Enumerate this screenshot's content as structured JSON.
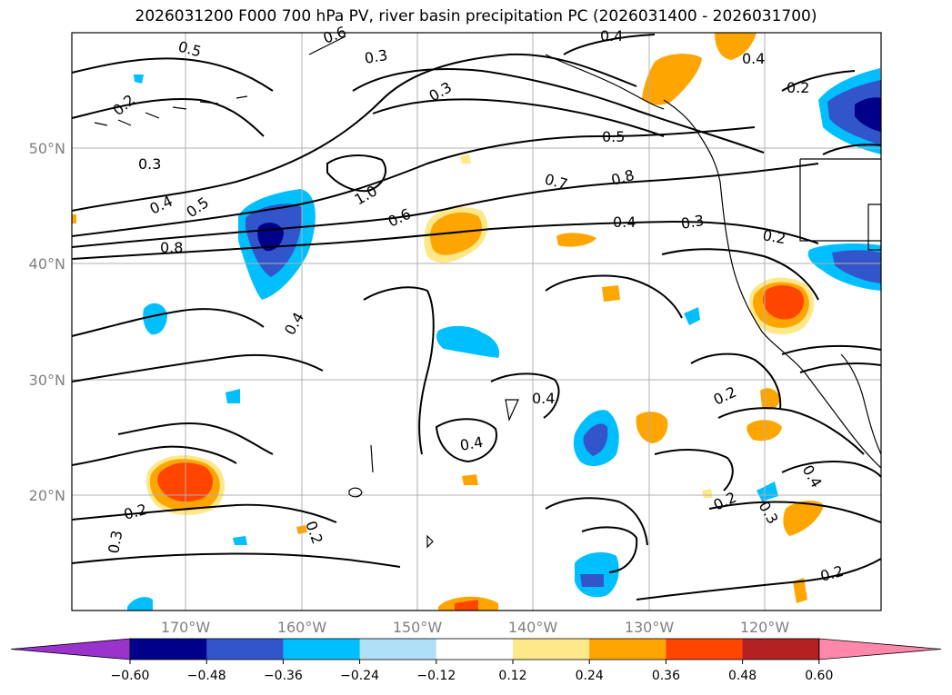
{
  "title": "2026031200 F000 700 hPa PV, river basin precipitation PC (2026031400 - 2026031700)",
  "map": {
    "lon_ticks": [
      "170°W",
      "160°W",
      "150°W",
      "140°W",
      "130°W",
      "120°W"
    ],
    "lat_ticks": [
      "50°N",
      "40°N",
      "30°N",
      "20°N"
    ],
    "contour_labels": [
      "0.5",
      "0.6",
      "0.3",
      "0.4",
      "0.2",
      "0.3",
      "0.5",
      "0.4",
      "0.2",
      "0.3",
      "0.4",
      "0.5",
      "1.0",
      "0.7",
      "0.8",
      "0.6",
      "0.4",
      "0.3",
      "0.2",
      "0.8",
      "0.4",
      "0.4",
      "0.4",
      "0.2",
      "0.2",
      "0.3",
      "0.2",
      "0.2",
      "0.3",
      "0.4",
      "0.2"
    ]
  },
  "colorbar": {
    "colors": [
      "#9933cc",
      "#00008b",
      "#3355cc",
      "#00bfff",
      "#b0e0f8",
      "#ffffff",
      "#ffe88a",
      "#ffa500",
      "#ff4500",
      "#b22222",
      "#ff88aa"
    ],
    "tick_labels": [
      "−0.60",
      "−0.48",
      "−0.36",
      "−0.24",
      "−0.12",
      "0.12",
      "0.24",
      "0.36",
      "0.48",
      "0.60"
    ]
  }
}
